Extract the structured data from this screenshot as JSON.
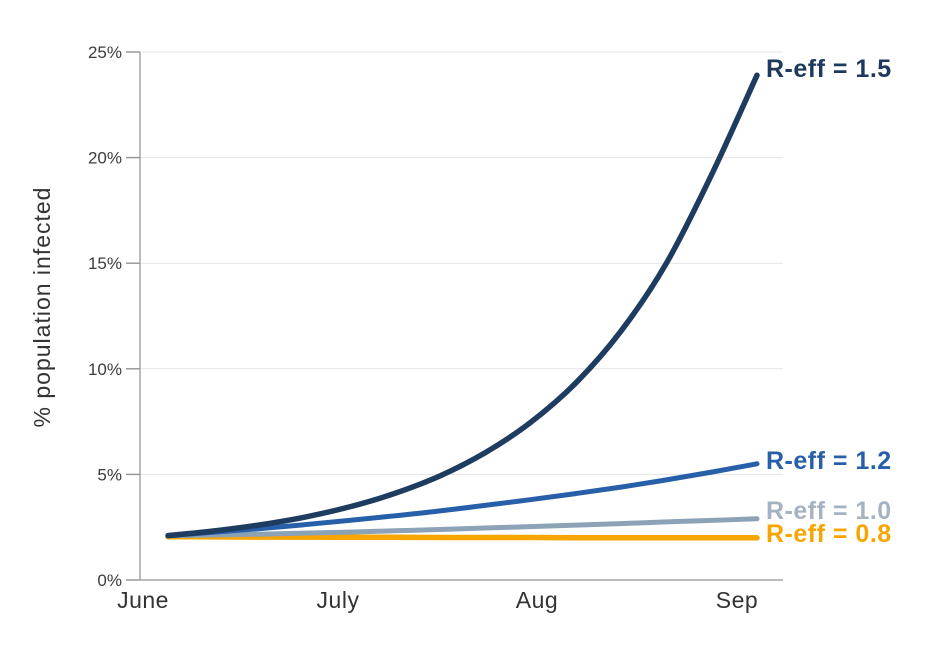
{
  "chart_data": {
    "type": "line",
    "title": "",
    "xlabel": "",
    "ylabel": "% population infected",
    "x_unit": "fraction of June–September span",
    "x": [
      0,
      0.077,
      0.154,
      0.231,
      0.308,
      0.385,
      0.462,
      0.538,
      0.615,
      0.692,
      0.769,
      0.846,
      0.923,
      1
    ],
    "x_tick_labels": [
      "June",
      "July",
      "Aug",
      "Sep"
    ],
    "y_ticks": [
      {
        "value": 0,
        "label": "0%"
      },
      {
        "value": 5,
        "label": "5%"
      },
      {
        "value": 10,
        "label": "10%"
      },
      {
        "value": 15,
        "label": "15%"
      },
      {
        "value": 20,
        "label": "20%"
      },
      {
        "value": 25,
        "label": "25%"
      }
    ],
    "ylim": [
      0,
      25
    ],
    "grid": "horizontal",
    "legend_position": "right-of-line-ends",
    "series": [
      {
        "name": "R-eff = 0.8",
        "color": "#f7a500",
        "label_color": "#f7a500",
        "values": [
          2.05,
          2.04,
          2.03,
          2.03,
          2.02,
          2.02,
          2.01,
          2.01,
          2.01,
          2.0,
          2.0,
          2.0,
          2.0,
          2.0
        ]
      },
      {
        "name": "R-eff = 1.0",
        "color": "#8ca2b6",
        "label_color": "#a4b2c1",
        "values": [
          2.1,
          2.13,
          2.17,
          2.22,
          2.27,
          2.33,
          2.39,
          2.46,
          2.53,
          2.6,
          2.67,
          2.75,
          2.82,
          2.9
        ]
      },
      {
        "name": "R-eff = 1.2",
        "color": "#275fa9",
        "label_color": "#275fa9",
        "values": [
          2.1,
          2.26,
          2.43,
          2.62,
          2.82,
          3.04,
          3.27,
          3.53,
          3.8,
          4.09,
          4.4,
          4.74,
          5.11,
          5.5
        ]
      },
      {
        "name": "R-eff = 1.5",
        "color": "#1e3c60",
        "label_color": "#1d3a5e",
        "values": [
          2.1,
          2.32,
          2.6,
          2.97,
          3.46,
          4.1,
          4.93,
          6.02,
          7.45,
          9.32,
          11.78,
          14.99,
          19.19,
          23.9
        ]
      }
    ]
  },
  "style": {
    "background": "#ffffff",
    "grid_color": "#e4e4e4",
    "axis_color": "#a6a6a6",
    "tick_color": "#9a9a9a"
  }
}
